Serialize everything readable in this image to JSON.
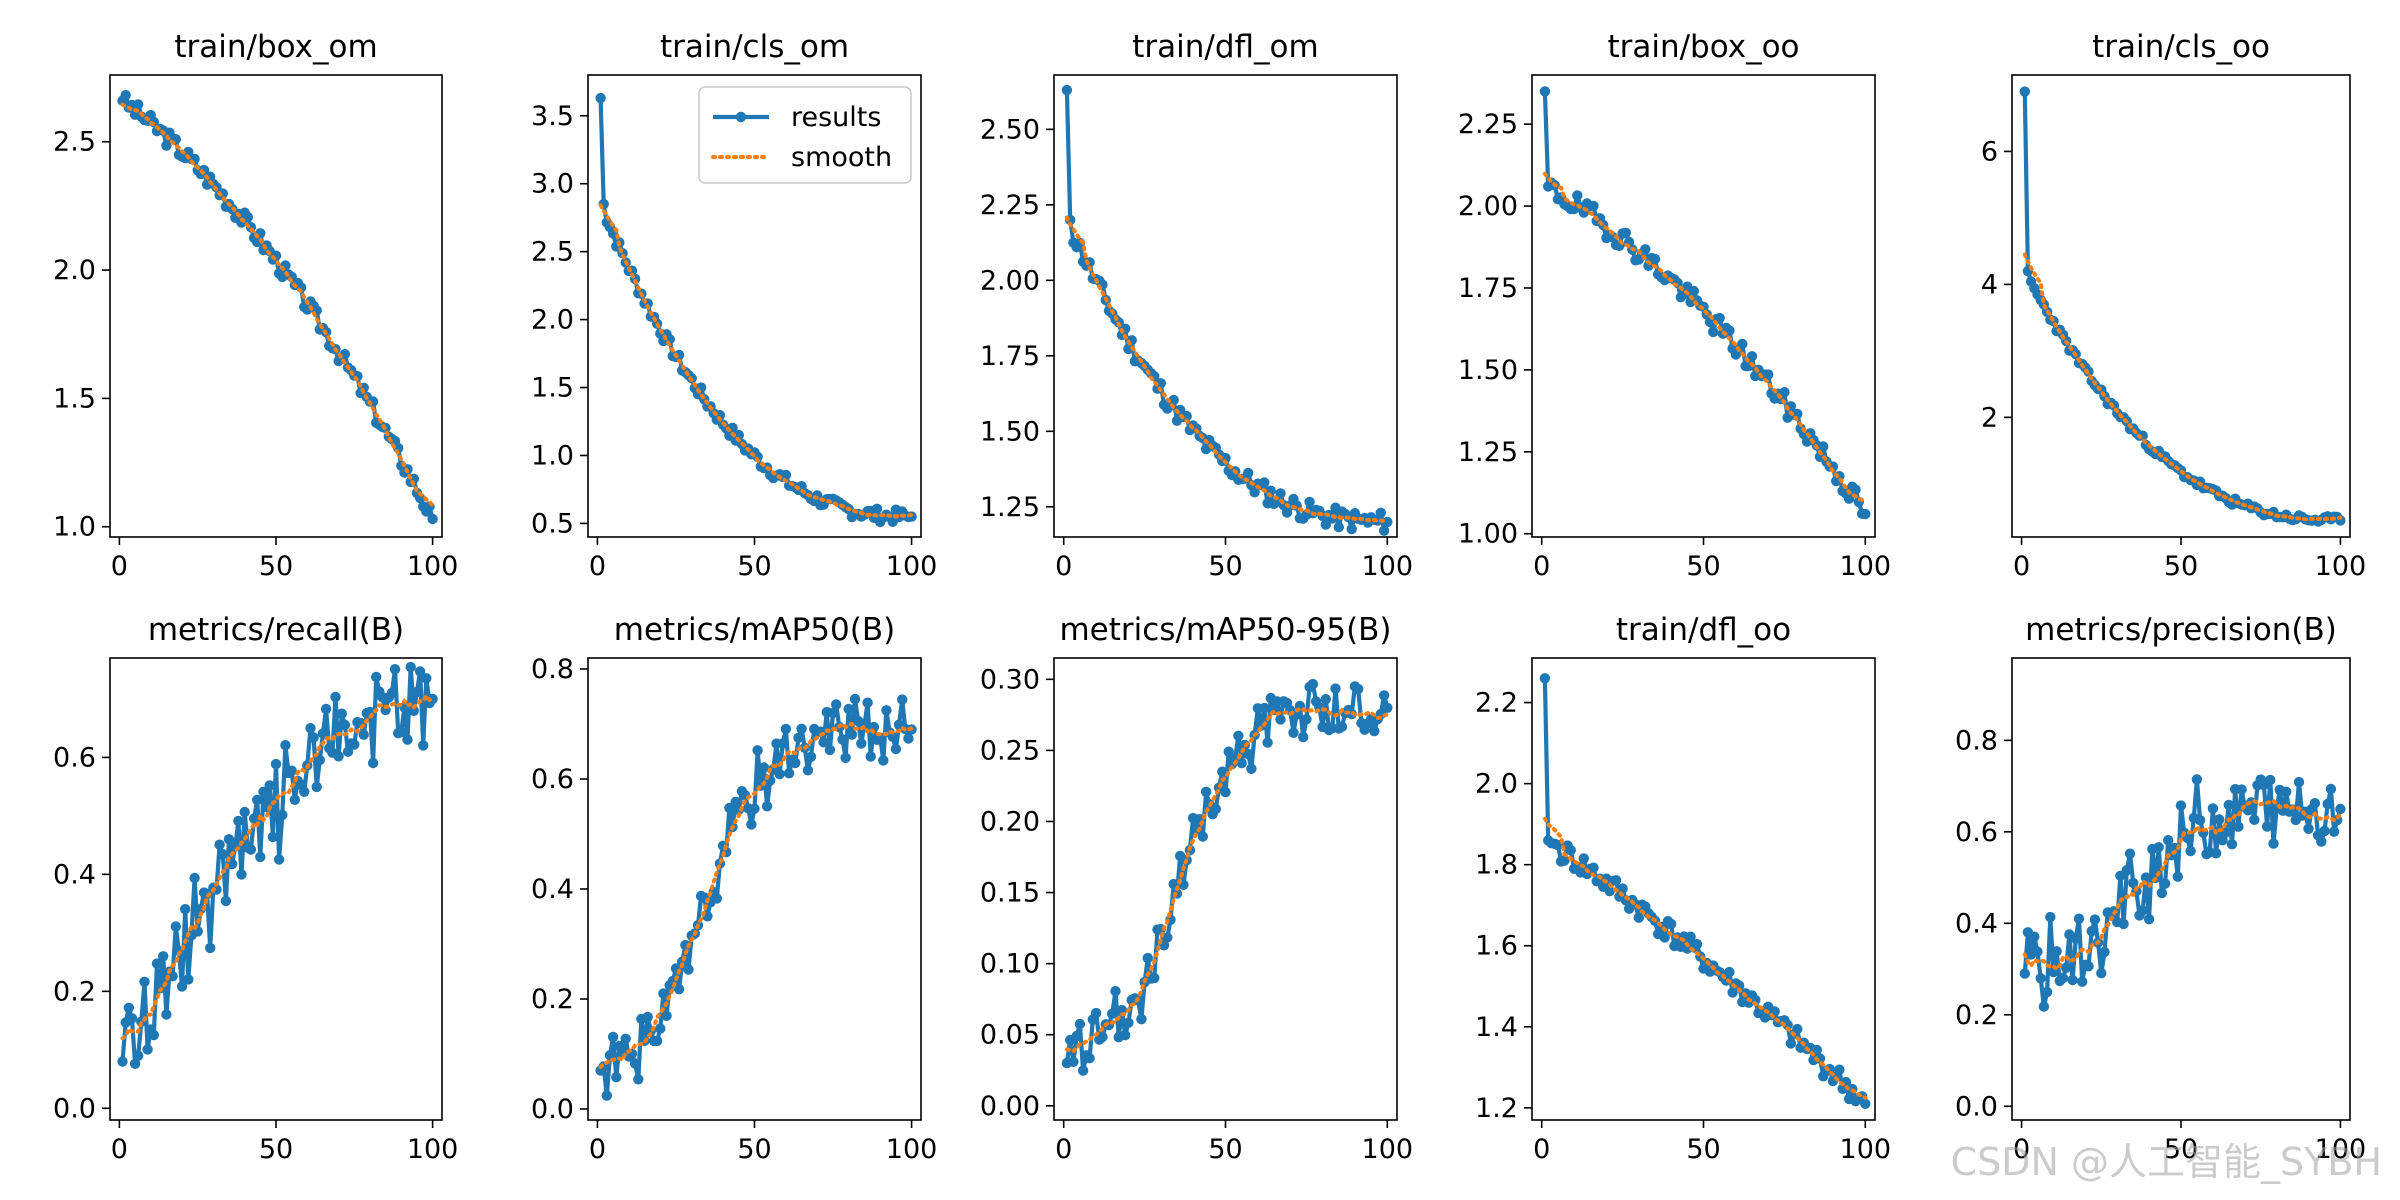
{
  "colors": {
    "results": "#1f77b4",
    "smooth": "#ff7f0e",
    "axis": "#000000",
    "background": "#ffffff"
  },
  "legend": {
    "results": "results",
    "smooth": "smooth",
    "placement": "top-right of train/cls_om"
  },
  "watermark": "CSDN @人工智能_SYBH",
  "chart_data": [
    {
      "type": "line",
      "title": "train/box_om",
      "xlim": [
        -3,
        103
      ],
      "ylim": [
        0.96,
        2.76
      ],
      "xticks": [
        {
          "v": 0,
          "l": "0"
        },
        {
          "v": 50,
          "l": "50"
        },
        {
          "v": 100,
          "l": "100"
        }
      ],
      "yticks": [
        {
          "v": 1.0,
          "l": "1.0"
        },
        {
          "v": 1.5,
          "l": "1.5"
        },
        {
          "v": 2.0,
          "l": "2.0"
        },
        {
          "v": 2.5,
          "l": "2.5"
        }
      ],
      "start": 2.66,
      "end": 1.03,
      "shape": "concave",
      "noise": 0.035,
      "seed": 3
    },
    {
      "type": "line",
      "title": "train/cls_om",
      "xlim": [
        -3,
        103
      ],
      "ylim": [
        0.4,
        3.8
      ],
      "xticks": [
        {
          "v": 0,
          "l": "0"
        },
        {
          "v": 50,
          "l": "50"
        },
        {
          "v": 100,
          "l": "100"
        }
      ],
      "yticks": [
        {
          "v": 0.5,
          "l": "0.5"
        },
        {
          "v": 1.0,
          "l": "1.0"
        },
        {
          "v": 1.5,
          "l": "1.5"
        },
        {
          "v": 2.0,
          "l": "2.0"
        },
        {
          "v": 2.5,
          "l": "2.5"
        },
        {
          "v": 3.0,
          "l": "3.0"
        },
        {
          "v": 3.5,
          "l": "3.5"
        }
      ],
      "start": 3.63,
      "first_drop": 2.85,
      "end": 0.55,
      "shape": "convex",
      "noise": 0.05,
      "seed": 7,
      "legend": true
    },
    {
      "type": "line",
      "title": "train/dfl_om",
      "xlim": [
        -3,
        103
      ],
      "ylim": [
        1.15,
        2.68
      ],
      "xticks": [
        {
          "v": 0,
          "l": "0"
        },
        {
          "v": 50,
          "l": "50"
        },
        {
          "v": 100,
          "l": "100"
        }
      ],
      "yticks": [
        {
          "v": 1.25,
          "l": "1.25"
        },
        {
          "v": 1.5,
          "l": "1.50"
        },
        {
          "v": 1.75,
          "l": "1.75"
        },
        {
          "v": 2.0,
          "l": "2.00"
        },
        {
          "v": 2.25,
          "l": "2.25"
        },
        {
          "v": 2.5,
          "l": "2.50"
        }
      ],
      "start": 2.63,
      "first_drop": 2.2,
      "end": 1.2,
      "shape": "convex",
      "noise": 0.035,
      "seed": 11
    },
    {
      "type": "line",
      "title": "train/box_oo",
      "xlim": [
        -3,
        103
      ],
      "ylim": [
        0.99,
        2.4
      ],
      "xticks": [
        {
          "v": 0,
          "l": "0"
        },
        {
          "v": 50,
          "l": "50"
        },
        {
          "v": 100,
          "l": "100"
        }
      ],
      "yticks": [
        {
          "v": 1.0,
          "l": "1.00"
        },
        {
          "v": 1.25,
          "l": "1.25"
        },
        {
          "v": 1.5,
          "l": "1.50"
        },
        {
          "v": 1.75,
          "l": "1.75"
        },
        {
          "v": 2.0,
          "l": "2.00"
        },
        {
          "v": 2.25,
          "l": "2.25"
        }
      ],
      "start": 2.35,
      "first_drop": 2.06,
      "end": 1.06,
      "shape": "concave",
      "noise": 0.035,
      "seed": 19
    },
    {
      "type": "line",
      "title": "train/cls_oo",
      "xlim": [
        -3,
        103
      ],
      "ylim": [
        0.2,
        7.15
      ],
      "xticks": [
        {
          "v": 0,
          "l": "0"
        },
        {
          "v": 50,
          "l": "50"
        },
        {
          "v": 100,
          "l": "100"
        }
      ],
      "yticks": [
        {
          "v": 2,
          "l": "2"
        },
        {
          "v": 4,
          "l": "4"
        },
        {
          "v": 6,
          "l": "6"
        }
      ],
      "start": 6.9,
      "first_drop": 4.2,
      "end": 0.45,
      "shape": "convex",
      "noise": 0.06,
      "seed": 23
    },
    {
      "type": "line",
      "title": "metrics/recall(B)",
      "xlim": [
        -3,
        103
      ],
      "ylim": [
        -0.02,
        0.77
      ],
      "xticks": [
        {
          "v": 0,
          "l": "0"
        },
        {
          "v": 50,
          "l": "50"
        },
        {
          "v": 100,
          "l": "100"
        }
      ],
      "yticks": [
        {
          "v": 0.0,
          "l": "0.0"
        },
        {
          "v": 0.2,
          "l": "0.2"
        },
        {
          "v": 0.4,
          "l": "0.4"
        },
        {
          "v": 0.6,
          "l": "0.6"
        }
      ],
      "start": 0.08,
      "end": 0.7,
      "shape": "rise",
      "noise": 0.07,
      "seed": 29
    },
    {
      "type": "line",
      "title": "metrics/mAP50(B)",
      "xlim": [
        -3,
        103
      ],
      "ylim": [
        -0.02,
        0.82
      ],
      "xticks": [
        {
          "v": 0,
          "l": "0"
        },
        {
          "v": 50,
          "l": "50"
        },
        {
          "v": 100,
          "l": "100"
        }
      ],
      "yticks": [
        {
          "v": 0.0,
          "l": "0.0"
        },
        {
          "v": 0.2,
          "l": "0.2"
        },
        {
          "v": 0.4,
          "l": "0.4"
        },
        {
          "v": 0.6,
          "l": "0.6"
        },
        {
          "v": 0.8,
          "l": "0.8"
        }
      ],
      "start": 0.07,
      "end": 0.69,
      "shape": "sigmoid",
      "noise": 0.05,
      "seed": 31
    },
    {
      "type": "line",
      "title": "metrics/mAP50-95(B)",
      "xlim": [
        -3,
        103
      ],
      "ylim": [
        -0.01,
        0.315
      ],
      "xticks": [
        {
          "v": 0,
          "l": "0"
        },
        {
          "v": 50,
          "l": "50"
        },
        {
          "v": 100,
          "l": "100"
        }
      ],
      "yticks": [
        {
          "v": 0.0,
          "l": "0.00"
        },
        {
          "v": 0.05,
          "l": "0.05"
        },
        {
          "v": 0.1,
          "l": "0.10"
        },
        {
          "v": 0.15,
          "l": "0.15"
        },
        {
          "v": 0.2,
          "l": "0.20"
        },
        {
          "v": 0.25,
          "l": "0.25"
        },
        {
          "v": 0.3,
          "l": "0.30"
        }
      ],
      "start": 0.03,
      "end": 0.28,
      "shape": "sigmoid",
      "noise": 0.02,
      "seed": 37
    },
    {
      "type": "line",
      "title": "train/dfl_oo",
      "xlim": [
        -3,
        103
      ],
      "ylim": [
        1.17,
        2.31
      ],
      "xticks": [
        {
          "v": 0,
          "l": "0"
        },
        {
          "v": 50,
          "l": "50"
        },
        {
          "v": 100,
          "l": "100"
        }
      ],
      "yticks": [
        {
          "v": 1.2,
          "l": "1.2"
        },
        {
          "v": 1.4,
          "l": "1.4"
        },
        {
          "v": 1.6,
          "l": "1.6"
        },
        {
          "v": 1.8,
          "l": "1.8"
        },
        {
          "v": 2.0,
          "l": "2.0"
        },
        {
          "v": 2.2,
          "l": "2.2"
        }
      ],
      "start": 2.26,
      "first_drop": 1.86,
      "end": 1.21,
      "shape": "linear",
      "noise": 0.03,
      "seed": 41
    },
    {
      "type": "line",
      "title": "metrics/precision(B)",
      "xlim": [
        -3,
        103
      ],
      "ylim": [
        -0.03,
        0.98
      ],
      "xticks": [
        {
          "v": 0,
          "l": "0"
        },
        {
          "v": 50,
          "l": "50"
        },
        {
          "v": 100,
          "l": "100"
        }
      ],
      "yticks": [
        {
          "v": 0.0,
          "l": "0.0"
        },
        {
          "v": 0.2,
          "l": "0.2"
        },
        {
          "v": 0.4,
          "l": "0.4"
        },
        {
          "v": 0.6,
          "l": "0.6"
        },
        {
          "v": 0.8,
          "l": "0.8"
        }
      ],
      "start": 0.29,
      "end": 0.65,
      "shape": "sigmoid",
      "noise": 0.08,
      "seed": 43
    }
  ]
}
